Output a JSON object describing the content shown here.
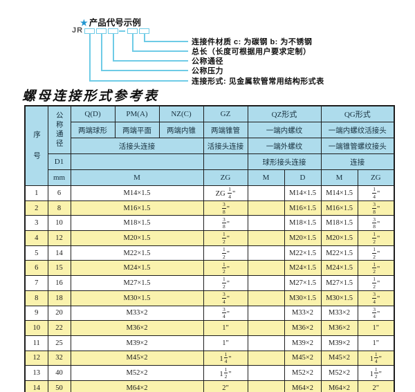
{
  "diagram": {
    "star_icon": "★",
    "heading": "产品代号示例",
    "code_prefix": "JR",
    "labels": [
      "连接件材质  c: 为碳钢  b: 为不锈钢",
      "总长（长度可根据用户要求定制）",
      "公称通径",
      "公称压力",
      "连接形式: 见金属软管常用结构形式表"
    ]
  },
  "table": {
    "title": "螺母连接形式参考表",
    "header": {
      "serial": "序号",
      "nominal_diameter": "公称通径",
      "d1": "D1",
      "mm": "mm",
      "q": {
        "code": "Q(D)",
        "desc": "两端球形"
      },
      "pm": {
        "code": "PM(A)",
        "desc": "两端平面"
      },
      "nz": {
        "code": "NZ(C)",
        "desc": "两端内锥"
      },
      "gz": {
        "code": "GZ",
        "desc": "两端锥管",
        "conn": "活接头连接",
        "unit": "ZG"
      },
      "qz": {
        "code": "QZ形式",
        "desc1": "一端内螺纹",
        "desc2": "一端外螺纹",
        "conn": "球形接头连接",
        "unit1": "M",
        "unit2": "D"
      },
      "qg": {
        "code": "QG形式",
        "desc1": "一端内螺纹活接头",
        "desc2": "一端锥管螺纹接头",
        "conn": "连接",
        "unit1": "M",
        "unit2": "ZG"
      },
      "qpmnz_conn": "活接头连接",
      "qpmnz_unit": "M"
    },
    "rows": [
      {
        "no": "1",
        "mm": "6",
        "m": "M14×1.5",
        "gz": "ZG {1/4}\"",
        "qz_m": "",
        "qz_d": "M14×1.5",
        "qg_m": "M14×1.5",
        "qg_zg": "{1/4}\""
      },
      {
        "no": "2",
        "mm": "8",
        "m": "M16×1.5",
        "gz": "{3/8}\"",
        "qz_m": "",
        "qz_d": "M16×1.5",
        "qg_m": "M16×1.5",
        "qg_zg": "{3/8}\""
      },
      {
        "no": "3",
        "mm": "10",
        "m": "M18×1.5",
        "gz": "{3/8}\"",
        "qz_m": "",
        "qz_d": "M18×1.5",
        "qg_m": "M18×1.5",
        "qg_zg": "{3/8}\""
      },
      {
        "no": "4",
        "mm": "12",
        "m": "M20×1.5",
        "gz": "{1/2}\"",
        "qz_m": "",
        "qz_d": "M20×1.5",
        "qg_m": "M20×1.5",
        "qg_zg": "{1/2}\""
      },
      {
        "no": "5",
        "mm": "14",
        "m": "M22×1.5",
        "gz": "{1/2}\"",
        "qz_m": "",
        "qz_d": "M22×1.5",
        "qg_m": "M22×1.5",
        "qg_zg": "{1/2}\""
      },
      {
        "no": "6",
        "mm": "15",
        "m": "M24×1.5",
        "gz": "{1/2}\"",
        "qz_m": "",
        "qz_d": "M24×1.5",
        "qg_m": "M24×1.5",
        "qg_zg": "{1/2}\""
      },
      {
        "no": "7",
        "mm": "16",
        "m": "M27×1.5",
        "gz": "{1/2}\"",
        "qz_m": "",
        "qz_d": "M27×1.5",
        "qg_m": "M27×1.5",
        "qg_zg": "{1/2}\""
      },
      {
        "no": "8",
        "mm": "18",
        "m": "M30×1.5",
        "gz": "{3/4}\"",
        "qz_m": "",
        "qz_d": "M30×1.5",
        "qg_m": "M30×1.5",
        "qg_zg": "{3/4}\""
      },
      {
        "no": "9",
        "mm": "20",
        "m": "M33×2",
        "gz": "{3/4}\"",
        "qz_m": "",
        "qz_d": "M33×2",
        "qg_m": "M33×2",
        "qg_zg": "{3/4}\""
      },
      {
        "no": "10",
        "mm": "22",
        "m": "M36×2",
        "gz": "1\"",
        "qz_m": "",
        "qz_d": "M36×2",
        "qg_m": "M36×2",
        "qg_zg": "1\""
      },
      {
        "no": "11",
        "mm": "25",
        "m": "M39×2",
        "gz": "1\"",
        "qz_m": "",
        "qz_d": "M39×2",
        "qg_m": "M39×2",
        "qg_zg": "1\""
      },
      {
        "no": "12",
        "mm": "32",
        "m": "M45×2",
        "gz": "1{1/4}\"",
        "qz_m": "",
        "qz_d": "M45×2",
        "qg_m": "M45×2",
        "qg_zg": "1{1/4}\""
      },
      {
        "no": "13",
        "mm": "40",
        "m": "M52×2",
        "gz": "1{1/2}\"",
        "qz_m": "",
        "qz_d": "M52×2",
        "qg_m": "M52×2",
        "qg_zg": "1{1/2}\""
      },
      {
        "no": "14",
        "mm": "50",
        "m": "M64×2",
        "gz": "2\"",
        "qz_m": "",
        "qz_d": "M64×2",
        "qg_m": "M64×2",
        "qg_zg": "2\""
      }
    ],
    "colors": {
      "header_bg": "#aedcec",
      "row_alt_bg": "#faf2ad",
      "row_bg": "#ffffff",
      "border": "#1c1c1c",
      "accent_line": "#6ecbe6",
      "star_blue": "#2196d0"
    }
  }
}
